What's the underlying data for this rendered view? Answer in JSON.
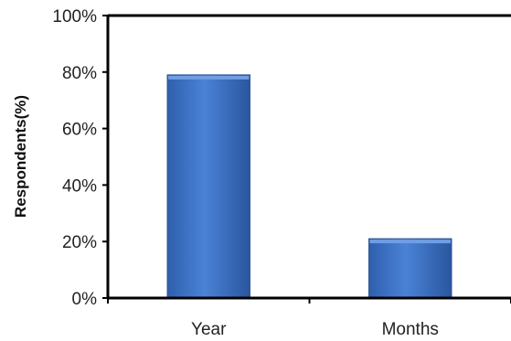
{
  "chart_data": {
    "type": "bar",
    "title": "",
    "xlabel": "",
    "ylabel": "Respondents(%)",
    "categories": [
      "Year",
      "Months"
    ],
    "values": [
      79,
      21
    ],
    "ylim": [
      0,
      100
    ],
    "yticks": [
      0,
      20,
      40,
      60,
      80,
      100
    ],
    "ytick_labels": [
      "0%",
      "20%",
      "40%",
      "60%",
      "80%",
      "100%"
    ],
    "grid": false,
    "legend": "none",
    "bar_color": "#3d72c4"
  }
}
